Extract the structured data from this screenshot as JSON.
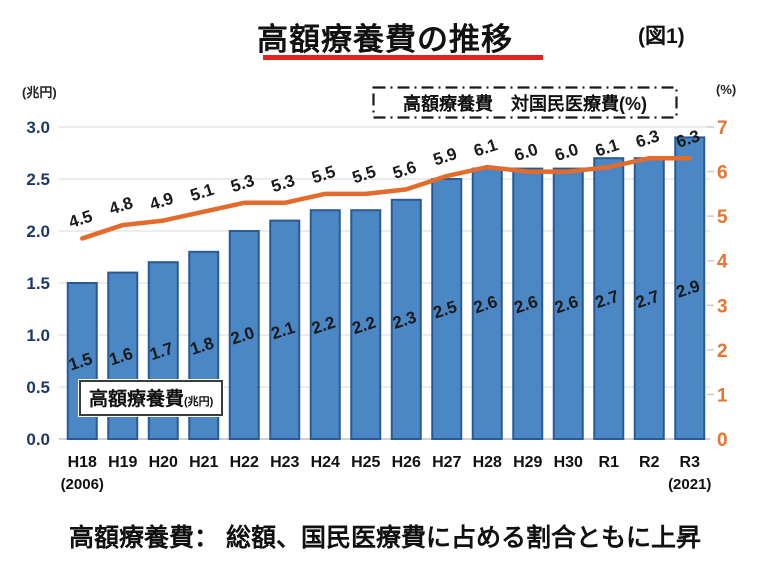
{
  "title": "高額療養費の推移",
  "figure_label": "(図1)",
  "caption": "高額療養費： 総額、国民医療費に占める割合ともに上昇",
  "legend": {
    "label": "高額療養費　対国民医療費(%)"
  },
  "bar_label_box": {
    "main": "高額療養費",
    "unit": "(兆円)"
  },
  "left_axis": {
    "unit": "(兆円)",
    "ticks": [
      "3.0",
      "2.5",
      "2.0",
      "1.5",
      "1.0",
      "0.5",
      "0.0"
    ],
    "max": 3.0,
    "color": "#1f3864"
  },
  "right_axis": {
    "unit": "(%)",
    "ticks": [
      "7",
      "6",
      "5",
      "4",
      "3",
      "2",
      "1",
      "0"
    ],
    "max": 7,
    "color": "#e8742f"
  },
  "chart_data": {
    "type": "bar+line",
    "categories": [
      "H18",
      "H19",
      "H20",
      "H21",
      "H22",
      "H23",
      "H24",
      "H25",
      "H26",
      "H27",
      "H28",
      "H29",
      "H30",
      "R1",
      "R2",
      "R3"
    ],
    "first_category_note": "(2006)",
    "last_category_note": "(2021)",
    "series": [
      {
        "name": "高額療養費(兆円)",
        "type": "bar",
        "axis": "left",
        "color": "#4b86c5",
        "border_color": "#2a5a94",
        "values": [
          1.5,
          1.6,
          1.7,
          1.8,
          2.0,
          2.1,
          2.2,
          2.2,
          2.3,
          2.5,
          2.6,
          2.6,
          2.6,
          2.7,
          2.7,
          2.9
        ]
      },
      {
        "name": "高額療養費 対国民医療費(%)",
        "type": "line",
        "axis": "right",
        "color": "#e36c2c",
        "values": [
          4.5,
          4.8,
          4.9,
          5.1,
          5.3,
          5.3,
          5.5,
          5.5,
          5.6,
          5.9,
          6.1,
          6.0,
          6.0,
          6.1,
          6.3,
          6.3
        ]
      }
    ],
    "left_ylim": [
      0,
      3.0
    ],
    "right_ylim": [
      0,
      7
    ],
    "grid": true,
    "legend_position": "top"
  },
  "colors": {
    "grid": "#d9d9d9",
    "axis_line": "#c2c2c2",
    "right_tick_mark": "#c9c9c9",
    "title_underline": "#e2241d",
    "data_label": "#1a1a1a"
  }
}
